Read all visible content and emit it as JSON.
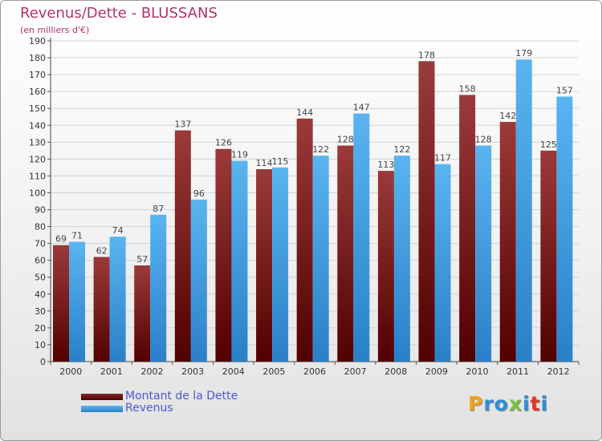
{
  "chart_data": {
    "type": "bar",
    "title": "Revenus/Dette - BLUSSANS",
    "subtitle": "(en milliers d'€)",
    "categories": [
      "2000",
      "2001",
      "2002",
      "2003",
      "2004",
      "2005",
      "2006",
      "2007",
      "2008",
      "2009",
      "2010",
      "2011",
      "2012"
    ],
    "series": [
      {
        "name": "Montant de la Dette",
        "color": "#7a1a1e",
        "values": [
          69,
          62,
          57,
          137,
          126,
          114,
          144,
          128,
          113,
          178,
          158,
          142,
          125
        ]
      },
      {
        "name": "Revenus",
        "color": "#3e9ee8",
        "values": [
          71,
          74,
          87,
          96,
          119,
          115,
          122,
          147,
          122,
          117,
          128,
          179,
          157
        ]
      }
    ],
    "ylim": [
      0,
      190
    ],
    "yticks": [
      0,
      10,
      20,
      30,
      40,
      50,
      60,
      70,
      80,
      90,
      100,
      110,
      120,
      130,
      140,
      150,
      160,
      170,
      180,
      190
    ],
    "grid": true,
    "legend_position": "bottom-left"
  },
  "logo": {
    "letters": [
      "P",
      "r",
      "o",
      "x",
      "i",
      "t",
      "i"
    ],
    "colors": [
      "#f2a31b",
      "#2f8fd8",
      "#2f8fd8",
      "#7ac143",
      "#2f8fd8",
      "#e2332a",
      "#2f8fd8"
    ]
  }
}
